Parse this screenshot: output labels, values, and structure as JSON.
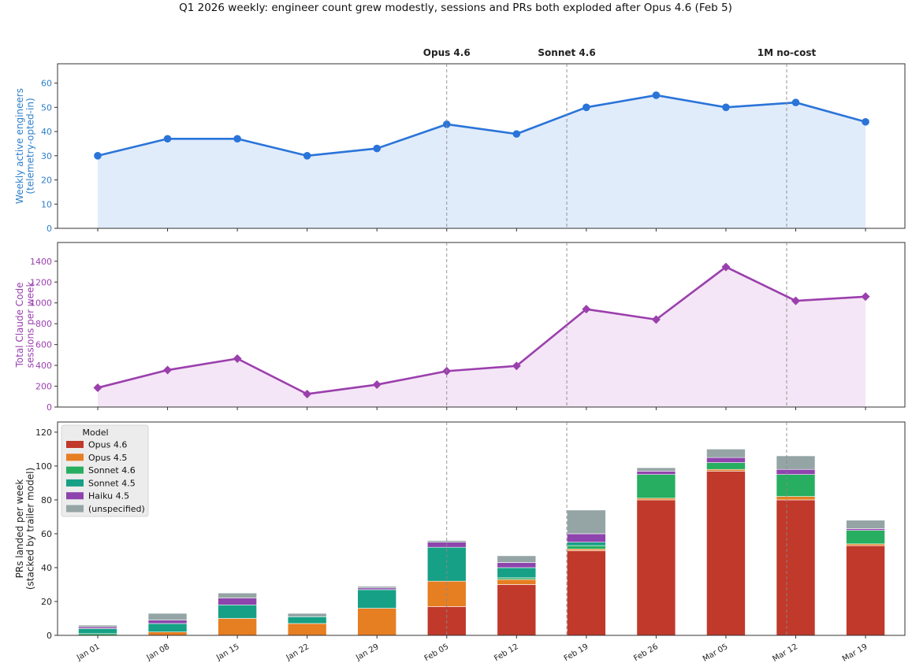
{
  "chart_data": [
    {
      "type": "line",
      "panel": "top",
      "title": "Q1 2026 weekly: engineer count grew modestly, sessions and PRs both exploded after Opus 4.6 (Feb 5)",
      "ylabel_lines": [
        "Weekly active engineers",
        "(telemetry-opted-in)"
      ],
      "ylim": [
        0,
        68
      ],
      "yticks": [
        0,
        10,
        20,
        30,
        40,
        50,
        60
      ],
      "x": [
        "Jan 01",
        "Jan 08",
        "Jan 15",
        "Jan 22",
        "Jan 29",
        "Feb 05",
        "Feb 12",
        "Feb 19",
        "Feb 26",
        "Mar 05",
        "Mar 12",
        "Mar 19"
      ],
      "values": [
        30,
        37,
        37,
        30,
        33,
        43,
        39,
        50,
        55,
        50,
        52,
        44
      ],
      "color": "#2a74d9",
      "fill": "#e1ecfb",
      "grid": false
    },
    {
      "type": "line",
      "panel": "middle",
      "ylabel_lines": [
        "Total Claude Code",
        "sessions per week"
      ],
      "ylim": [
        0,
        1580
      ],
      "yticks": [
        0,
        200,
        400,
        600,
        800,
        1000,
        1200,
        1400
      ],
      "x": [
        "Jan 01",
        "Jan 08",
        "Jan 15",
        "Jan 22",
        "Jan 29",
        "Feb 05",
        "Feb 12",
        "Feb 19",
        "Feb 26",
        "Mar 05",
        "Mar 12",
        "Mar 19"
      ],
      "values": [
        185,
        355,
        465,
        125,
        215,
        345,
        395,
        940,
        840,
        1345,
        1020,
        1060
      ],
      "color": "#9b3fad",
      "fill": "#f4e6f6",
      "grid": false
    },
    {
      "type": "bar",
      "stacked": true,
      "panel": "bottom",
      "ylabel_lines": [
        "PRs landed per week",
        "(stacked by trailer model)"
      ],
      "ylim": [
        0,
        126
      ],
      "yticks": [
        0,
        20,
        40,
        60,
        80,
        100,
        120
      ],
      "categories": [
        "Jan 01",
        "Jan 08",
        "Jan 15",
        "Jan 22",
        "Jan 29",
        "Feb 05",
        "Feb 12",
        "Feb 19",
        "Feb 26",
        "Mar 05",
        "Mar 12",
        "Mar 19"
      ],
      "series": [
        {
          "name": "Opus 4.6",
          "color": "#c0392b",
          "values": [
            0,
            0,
            0,
            0,
            0,
            17,
            30,
            50,
            80,
            97,
            80,
            53
          ]
        },
        {
          "name": "Opus 4.5",
          "color": "#e67e22",
          "values": [
            0,
            2,
            10,
            7,
            16,
            15,
            3,
            1,
            1,
            1,
            2,
            1
          ]
        },
        {
          "name": "Sonnet 4.6",
          "color": "#27ae60",
          "values": [
            1,
            0,
            0,
            0,
            0,
            0,
            1,
            2,
            14,
            4,
            13,
            8
          ]
        },
        {
          "name": "Sonnet 4.5",
          "color": "#16a085",
          "values": [
            3,
            5,
            8,
            4,
            11,
            20,
            6,
            2,
            0,
            0,
            0,
            0
          ]
        },
        {
          "name": "Haiku 4.5",
          "color": "#8e44ad",
          "values": [
            1,
            2,
            4,
            0,
            1,
            3,
            3,
            5,
            2,
            3,
            3,
            1
          ]
        },
        {
          "name": "(unspecified)",
          "color": "#95a5a6",
          "values": [
            1,
            4,
            3,
            2,
            1,
            1,
            4,
            14,
            2,
            5,
            8,
            5
          ]
        }
      ],
      "legend": {
        "title": "Model",
        "placement": "top-left"
      },
      "grid": false
    }
  ],
  "annotations": [
    {
      "label": "Opus 4.6",
      "x": "Feb 05",
      "panels": [
        "top",
        "middle",
        "bottom"
      ]
    },
    {
      "label": "Sonnet 4.6",
      "x_between": [
        "Feb 12",
        "Feb 19"
      ],
      "position": 0.72,
      "panels": [
        "top",
        "middle",
        "bottom"
      ]
    },
    {
      "label": "1M no-cost",
      "x_between": [
        "Mar 05",
        "Mar 12"
      ],
      "position": 0.87,
      "panels": [
        "top",
        "middle",
        "bottom"
      ]
    }
  ]
}
